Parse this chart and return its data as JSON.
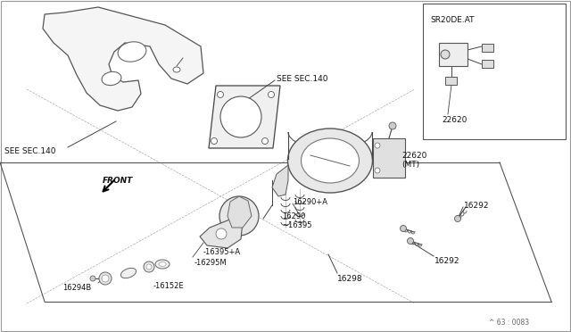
{
  "bg_color": "#ffffff",
  "fig_width": 6.4,
  "fig_height": 3.72,
  "dpi": 100,
  "labels": {
    "see_sec140_left": "SEE SEC.140",
    "see_sec140_top": "SEE SEC.140",
    "front": "FRONT",
    "sr20de_at": "SR20DE.AT",
    "p22620_mt": "22620\n(MT)",
    "p22620": "22620",
    "p16290a": "16290+A",
    "p16290": "16290",
    "p16395": "~16395",
    "p16395a": "-16395+A",
    "p16295m": "-16295M",
    "p16152e": "-16152E",
    "p16294b": "16294B",
    "p16298": "16298",
    "p16292a": "16292",
    "p16292b": "16292",
    "part_note": "^ 63 : 0083"
  }
}
